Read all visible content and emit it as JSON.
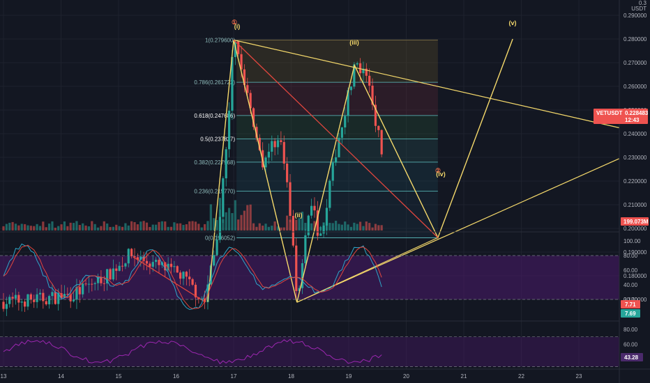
{
  "colors": {
    "background": "#131722",
    "grid": "#1e222d",
    "candle_up": "#26a69a",
    "candle_down": "#ef5350",
    "wave": "#f5d96b",
    "fib_line": "#5ec5c5",
    "stoch_k": "#2ea7c9",
    "stoch_d": "#e0463e",
    "rsi": "#9c27b0",
    "osc_band": "#4a1a6b",
    "price_tag": "#ef5350",
    "stoch_k_tag": "#26a69a"
  },
  "price_axis": {
    "unit_label": "USDT",
    "top_label": "0.3",
    "ticks": [
      "0.290000",
      "0.280000",
      "0.270000",
      "0.260000",
      "0.250000",
      "0.240000",
      "0.230000",
      "0.220000",
      "0.210000",
      "0.200000",
      "0.190000",
      "0.180000",
      "0.170000"
    ]
  },
  "symbol_tag": {
    "symbol": "VETUSDT",
    "price": "0.228483",
    "countdown": "12:43"
  },
  "volume_tag": "199.073M",
  "stoch_axis": {
    "ticks": [
      "100.00",
      "80.00",
      "60.00",
      "40.00",
      "20.00"
    ],
    "k_tag": "7.71",
    "d_tag": "7.69"
  },
  "rsi_axis": {
    "ticks": [
      "80.00",
      "60.00"
    ],
    "value_tag": "43.28"
  },
  "time_axis": {
    "labels": [
      "13",
      "14",
      "15",
      "16",
      "17",
      "18",
      "19",
      "20",
      "21",
      "22",
      "23"
    ]
  },
  "wave_labels": {
    "w1_circle": "①",
    "w1": "(i)",
    "w2": "(ii)",
    "w3": "(iii)",
    "w4_circle": "②",
    "w4": "(iv)",
    "w5": "(v)"
  },
  "fib_levels": [
    {
      "label": "1(0.279600)",
      "value": 0.2796
    },
    {
      "label": "0.786(0.261722)",
      "value": 0.261722
    },
    {
      "label": "0.618(0.247686)",
      "value": 0.247686
    },
    {
      "label": "0.5(0.237827)",
      "value": 0.237827
    },
    {
      "label": "0.382(0.227968)",
      "value": 0.227968
    },
    {
      "label": "0.236(0.215770)",
      "value": 0.21577
    },
    {
      "label": "0(0.196052)",
      "value": 0.196052
    }
  ],
  "chart_data": {
    "type": "candlestick",
    "symbol": "VETUSDT",
    "x_range": [
      "13",
      "23"
    ],
    "y_range": [
      0.16,
      0.3
    ],
    "last_price": 0.228483,
    "elliott_waves": [
      {
        "label": "(i)",
        "x": 17.0,
        "price": 0.2796
      },
      {
        "label": "(ii)",
        "x": 18.1,
        "price": 0.1688
      },
      {
        "label": "(iii)",
        "x": 19.1,
        "price": 0.2689
      },
      {
        "label": "(iv)",
        "x": 20.55,
        "price": 0.1961
      },
      {
        "label": "(v)",
        "x": 21.85,
        "price": 0.28
      }
    ],
    "stochastic": {
      "last_k": 7.71,
      "last_d": 7.69,
      "upper_band": 80,
      "lower_band": 20
    },
    "rsi": {
      "last": 43.28,
      "upper_band": 70,
      "lower_band": 30
    },
    "volume_last": "199.073M"
  }
}
